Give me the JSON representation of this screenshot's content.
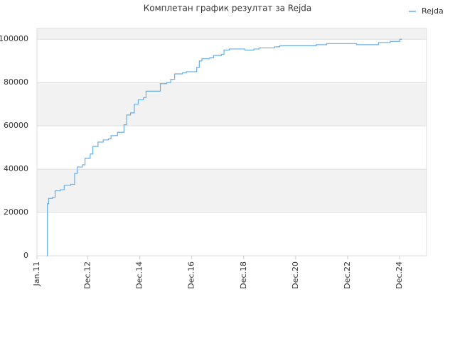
{
  "chart_data": {
    "type": "line",
    "title": "Комплетан график резултат за Rejda",
    "x": [
      2011.38,
      2011.4,
      2011.45,
      2011.6,
      2011.7,
      2011.9,
      2012.05,
      2012.3,
      2012.45,
      2012.55,
      2012.75,
      2012.85,
      2013.05,
      2013.15,
      2013.35,
      2013.55,
      2013.75,
      2013.85,
      2014.1,
      2014.35,
      2014.45,
      2014.6,
      2014.75,
      2014.9,
      2015.1,
      2015.2,
      2015.55,
      2015.75,
      2016.0,
      2016.15,
      2016.3,
      2016.6,
      2016.75,
      2017.05,
      2017.15,
      2017.25,
      2017.35,
      2017.65,
      2017.8,
      2018.1,
      2018.2,
      2018.4,
      2018.8,
      2019.0,
      2019.35,
      2019.55,
      2020.15,
      2020.35,
      2021.55,
      2021.75,
      2022.15,
      2023.05,
      2023.3,
      2023.9,
      2024.15,
      2024.6,
      2024.9,
      2024.97,
      2025.05
    ],
    "series": [
      {
        "name": "Rejda",
        "color": "#6aaee8",
        "values": [
          0,
          24000,
          26500,
          27000,
          30000,
          30500,
          32500,
          33000,
          38000,
          41000,
          42000,
          45000,
          47000,
          50500,
          52500,
          53500,
          54000,
          55500,
          57000,
          60500,
          65000,
          66000,
          70000,
          72000,
          73000,
          76000,
          76000,
          79500,
          80000,
          81500,
          84000,
          84500,
          85000,
          85000,
          87000,
          90000,
          91000,
          91500,
          92500,
          93000,
          95000,
          95500,
          95500,
          95000,
          95500,
          96000,
          96500,
          97000,
          97000,
          97500,
          98000,
          98000,
          97500,
          97500,
          98500,
          99000,
          99000,
          100000,
          100000
        ]
      }
    ],
    "xlim": [
      2011.0,
      2026.0
    ],
    "xticks": [
      {
        "value": 2011.0,
        "label": "Jan.11"
      },
      {
        "value": 2012.96,
        "label": "Dec.12"
      },
      {
        "value": 2014.96,
        "label": "Dec.14"
      },
      {
        "value": 2016.96,
        "label": "Dec.16"
      },
      {
        "value": 2018.96,
        "label": "Dec.18"
      },
      {
        "value": 2020.96,
        "label": "Dec.20"
      },
      {
        "value": 2022.96,
        "label": "Dec.22"
      },
      {
        "value": 2024.96,
        "label": "Dec.24"
      }
    ],
    "ylim": [
      0,
      105000
    ],
    "yticks": [
      0,
      20000,
      40000,
      60000,
      80000,
      100000
    ],
    "grid": true,
    "legend": "top-right"
  }
}
